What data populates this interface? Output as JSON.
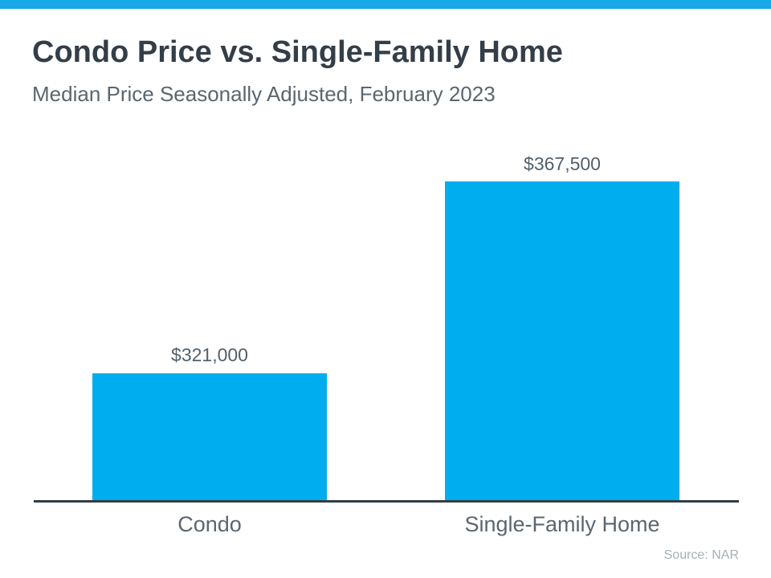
{
  "page": {
    "background": "#ffffff"
  },
  "top_bar": {
    "color": "#17a8e8"
  },
  "header": {
    "title": "Condo Price vs. Single-Family Home",
    "subtitle": "Median Price Seasonally Adjusted, February 2023"
  },
  "chart_data": {
    "type": "bar",
    "categories": [
      "Condo",
      "Single-Family Home"
    ],
    "values": [
      321000,
      367500
    ],
    "value_labels": [
      "$321,000",
      "$367,500"
    ],
    "title": "Condo Price vs. Single-Family Home",
    "subtitle": "Median Price Seasonally Adjusted, February 2023",
    "xlabel": "",
    "ylabel": "",
    "bar_color": "#00aeef",
    "axis_color": "#333d44",
    "label_color": "#54606b",
    "grid": false,
    "legend": false,
    "note": "y-axis not shown; bars not drawn to zero baseline"
  },
  "footer": {
    "source": "Source: NAR"
  }
}
